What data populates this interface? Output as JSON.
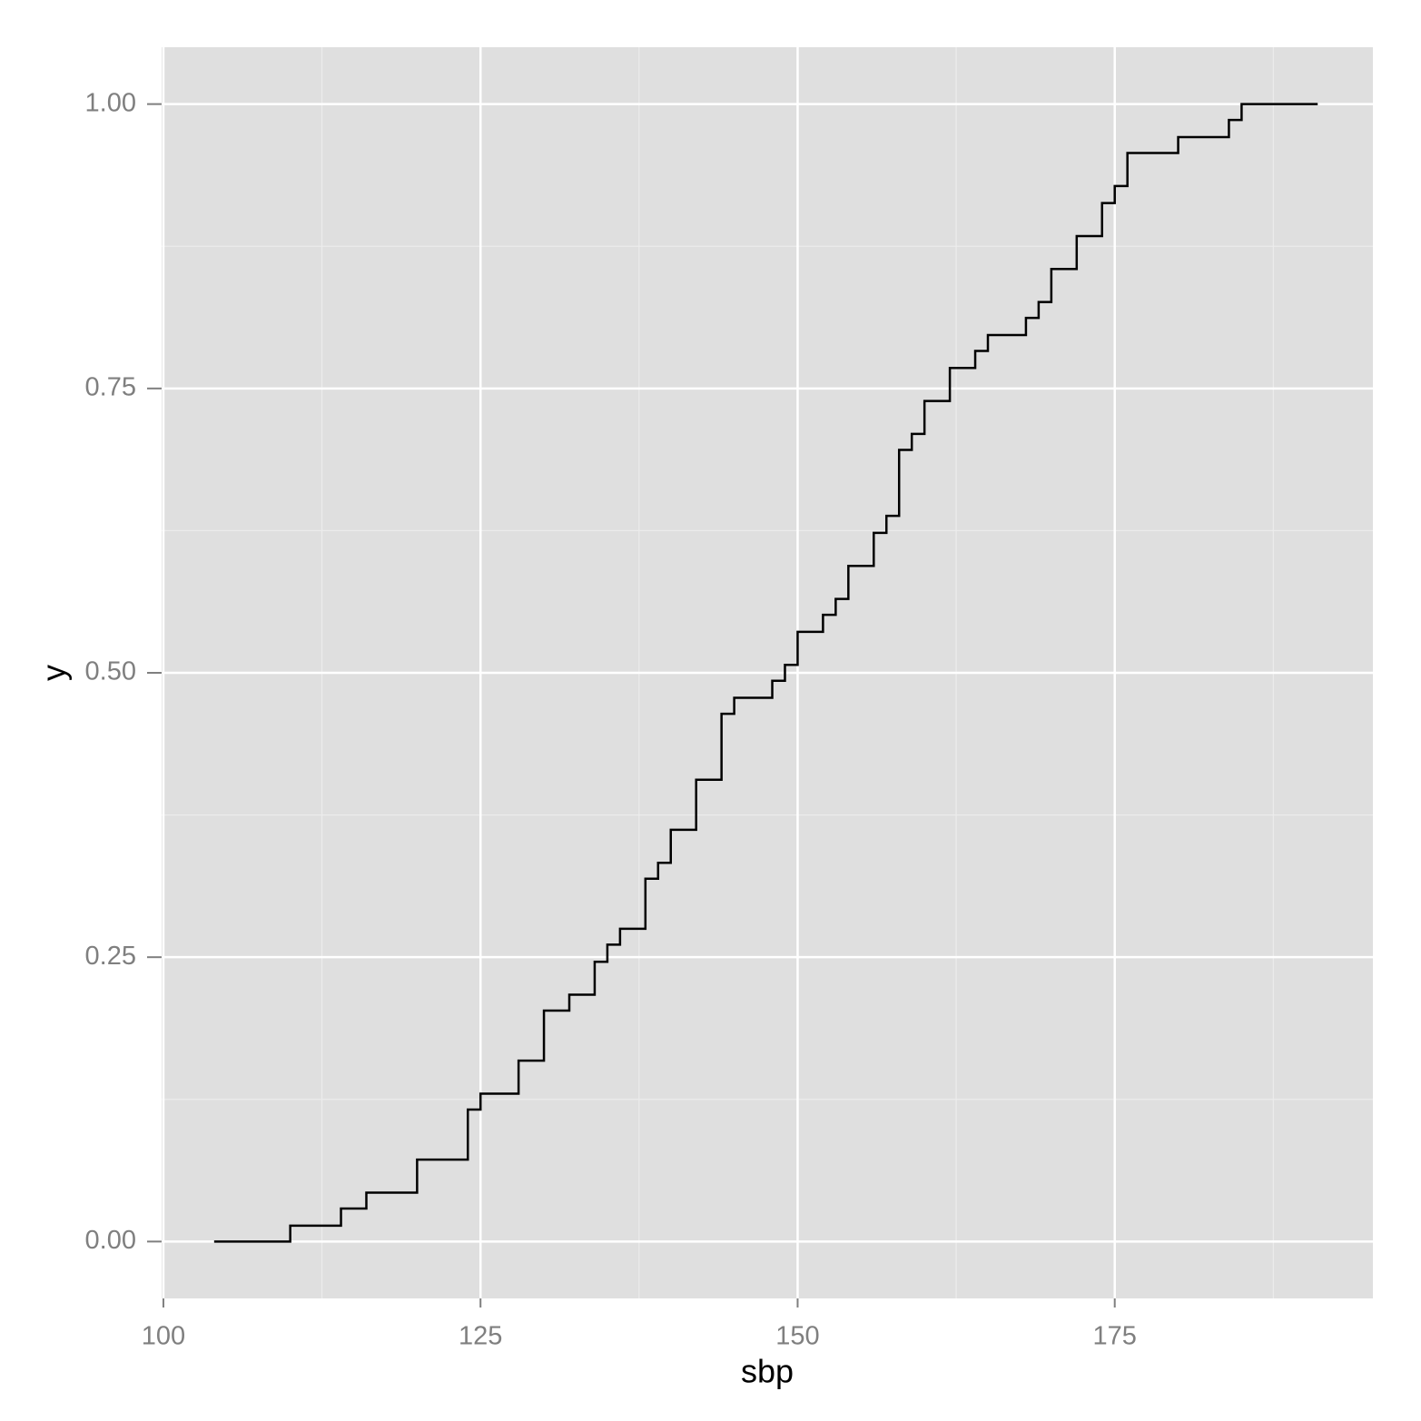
{
  "chart_data": {
    "type": "step",
    "x_label": "sbp",
    "y_label": "y",
    "x": [
      104,
      110,
      114,
      116,
      120,
      124,
      125,
      128,
      130,
      132,
      134,
      135,
      136,
      138,
      139,
      140,
      142,
      144,
      145,
      148,
      149,
      150,
      152,
      153,
      154,
      156,
      157,
      158,
      159,
      160,
      162,
      164,
      165,
      168,
      169,
      170,
      172,
      174,
      175,
      176,
      180,
      184,
      185,
      191
    ],
    "values": [
      0,
      0.014,
      0.029,
      0.043,
      0.072,
      0.116,
      0.13,
      0.159,
      0.203,
      0.217,
      0.246,
      0.261,
      0.275,
      0.319,
      0.333,
      0.362,
      0.406,
      0.464,
      0.478,
      0.493,
      0.507,
      0.536,
      0.551,
      0.565,
      0.594,
      0.623,
      0.638,
      0.696,
      0.71,
      0.739,
      0.768,
      0.783,
      0.797,
      0.812,
      0.826,
      0.855,
      0.884,
      0.913,
      0.928,
      0.957,
      0.971,
      0.986,
      1,
      1
    ],
    "color": "#000000",
    "xlim": [
      99.86,
      195.35
    ],
    "ylim": [
      -0.05,
      1.05
    ],
    "xticks": [
      100,
      125,
      150,
      175
    ],
    "yticks": [
      {
        "value": 0,
        "label": "0.00"
      },
      {
        "value": 0.25,
        "label": "0.25"
      },
      {
        "value": 0.5,
        "label": "0.50"
      },
      {
        "value": 0.75,
        "label": "0.75"
      },
      {
        "value": 1,
        "label": "1.00"
      }
    ],
    "grid": true
  }
}
